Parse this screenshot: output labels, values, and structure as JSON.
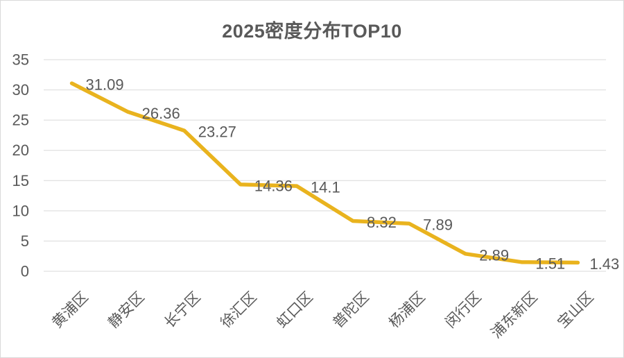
{
  "chart_data": {
    "type": "line",
    "title": "2025密度分布TOP10",
    "categories": [
      "黄浦区",
      "静安区",
      "长宁区",
      "徐汇区",
      "虹口区",
      "普陀区",
      "杨浦区",
      "闵行区",
      "浦东新区",
      "宝山区"
    ],
    "values": [
      31.09,
      26.36,
      23.27,
      14.36,
      14.1,
      8.32,
      7.89,
      2.89,
      1.51,
      1.43
    ],
    "xlabel": "",
    "ylabel": "",
    "ylim": [
      0,
      35
    ],
    "yticks": [
      0,
      5,
      10,
      15,
      20,
      25,
      30,
      35
    ],
    "grid": true,
    "legend": "none",
    "line_color": "#E9B31E",
    "text_color": "#595959",
    "gridline_color": "#D9D9D9",
    "border_color": "#D9D9D9",
    "background_color": "#FFFFFF"
  }
}
